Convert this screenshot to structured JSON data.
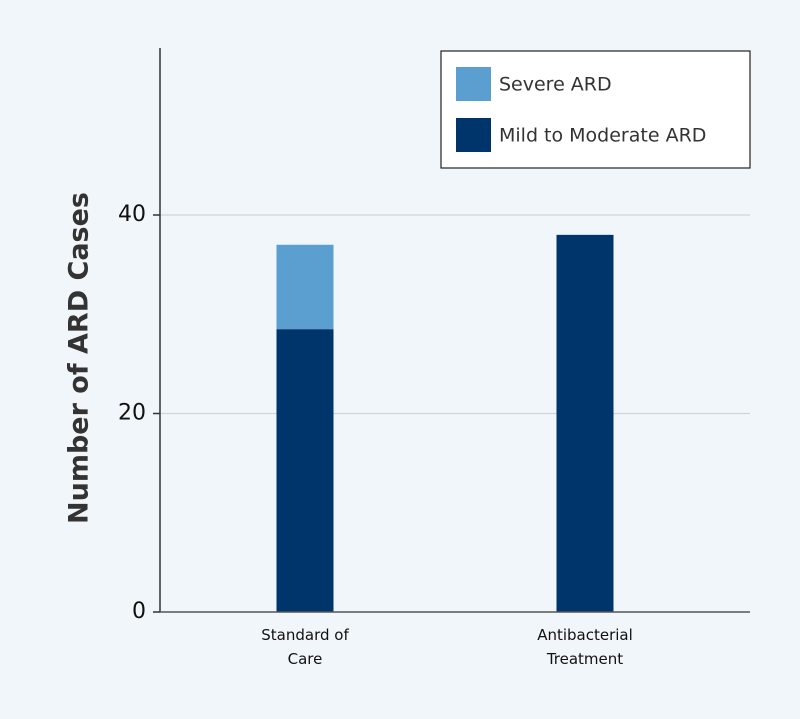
{
  "chart_data": {
    "type": "bar",
    "stacked": true,
    "title": "",
    "xlabel": "",
    "ylabel": "Number of ARD Cases",
    "ylim": [
      0,
      57
    ],
    "yticks": [
      0,
      20,
      40
    ],
    "grid": true,
    "legend_position": "top-right",
    "categories": [
      [
        "Standard of",
        "Care"
      ],
      [
        "Antibacterial",
        "Treatment"
      ]
    ],
    "series": [
      {
        "name": "Mild to Moderate ARD",
        "color": "#00356b",
        "values": [
          28.5,
          38
        ]
      },
      {
        "name": "Severe ARD",
        "color": "#5a9fcf",
        "values": [
          8.5,
          0
        ]
      }
    ],
    "legend_order": [
      1,
      0
    ]
  }
}
